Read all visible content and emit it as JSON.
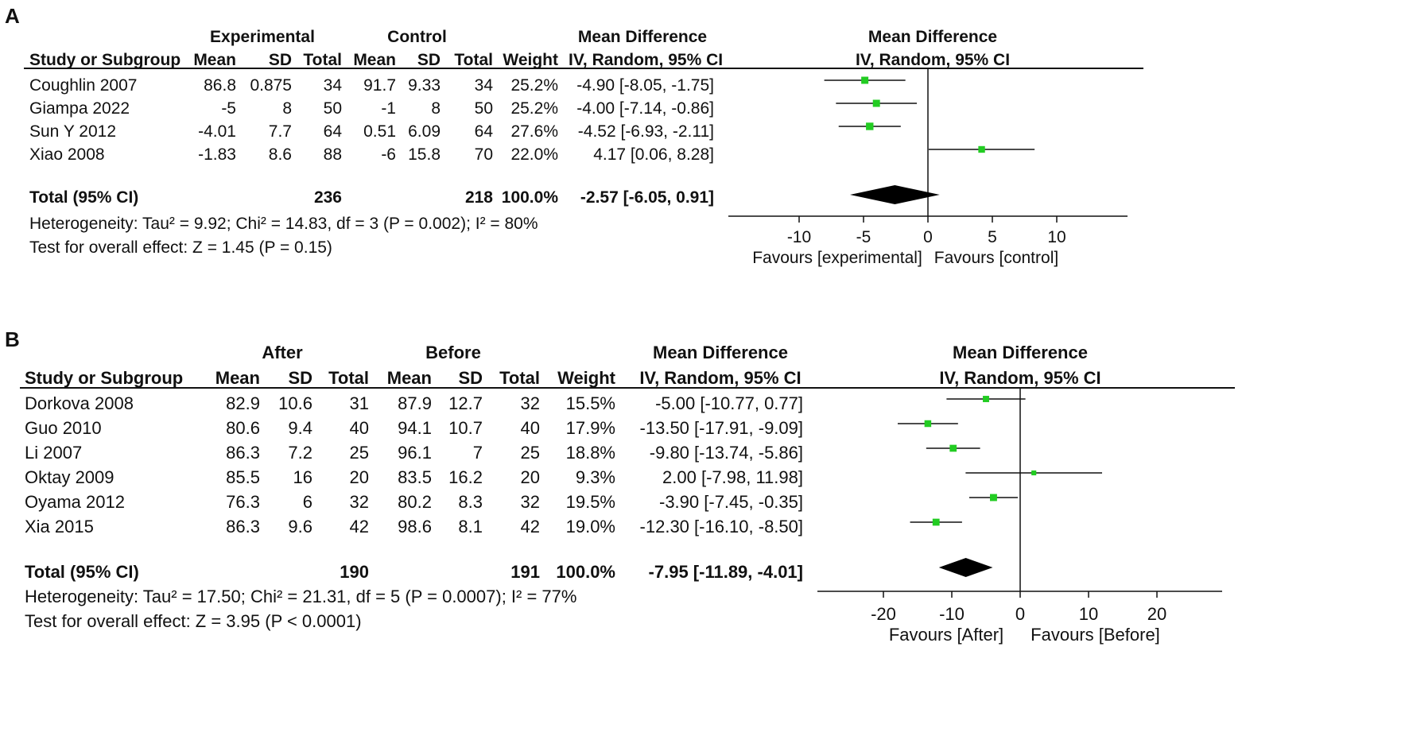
{
  "panels": [
    {
      "label": "A",
      "group1_label": "Experimental",
      "group2_label": "Control",
      "col_headers": {
        "study": "Study or Subgroup",
        "mean1": "Mean",
        "sd1": "SD",
        "total1": "Total",
        "mean2": "Mean",
        "sd2": "SD",
        "total2": "Total",
        "weight": "Weight",
        "md_title": "Mean Difference",
        "md_method": "IV, Random, 95% CI"
      },
      "plot_header": {
        "title": "Mean Difference",
        "method": "IV, Random, 95% CI"
      },
      "studies": [
        {
          "study": "Coughlin 2007",
          "mean1": "86.8",
          "sd1": "0.875",
          "total1": "34",
          "mean2": "91.7",
          "sd2": "9.33",
          "total2": "34",
          "weight": "25.2%",
          "ci_text": "-4.90 [-8.05, -1.75]"
        },
        {
          "study": "Giampa 2022",
          "mean1": "-5",
          "sd1": "8",
          "total1": "50",
          "mean2": "-1",
          "sd2": "8",
          "total2": "50",
          "weight": "25.2%",
          "ci_text": "-4.00 [-7.14, -0.86]"
        },
        {
          "study": "Sun Y 2012",
          "mean1": "-4.01",
          "sd1": "7.7",
          "total1": "64",
          "mean2": "0.51",
          "sd2": "6.09",
          "total2": "64",
          "weight": "27.6%",
          "ci_text": "-4.52 [-6.93, -2.11]"
        },
        {
          "study": "Xiao 2008",
          "mean1": "-1.83",
          "sd1": "8.6",
          "total1": "88",
          "mean2": "-6",
          "sd2": "15.8",
          "total2": "70",
          "weight": "22.0%",
          "ci_text": "4.17 [0.06, 8.28]"
        }
      ],
      "total": {
        "label": "Total (95% CI)",
        "total1": "236",
        "total2": "218",
        "weight": "100.0%",
        "ci_text": "-2.57 [-6.05, 0.91]"
      },
      "heterogeneity": "Heterogeneity: Tau² = 9.92; Chi² = 14.83, df = 3 (P = 0.002); I² = 80%",
      "overall_effect": "Test for overall effect: Z = 1.45 (P = 0.15)",
      "favours_left": "Favours [experimental]",
      "favours_right": "Favours [control]",
      "ticks": [
        "-10",
        "-5",
        "0",
        "5",
        "10"
      ]
    },
    {
      "label": "B",
      "group1_label": "After",
      "group2_label": "Before",
      "col_headers": {
        "study": "Study or Subgroup",
        "mean1": "Mean",
        "sd1": "SD",
        "total1": "Total",
        "mean2": "Mean",
        "sd2": "SD",
        "total2": "Total",
        "weight": "Weight",
        "md_title": "Mean Difference",
        "md_method": "IV, Random, 95% CI"
      },
      "plot_header": {
        "title": "Mean Difference",
        "method": "IV, Random, 95% CI"
      },
      "studies": [
        {
          "study": "Dorkova 2008",
          "mean1": "82.9",
          "sd1": "10.6",
          "total1": "31",
          "mean2": "87.9",
          "sd2": "12.7",
          "total2": "32",
          "weight": "15.5%",
          "ci_text": "-5.00 [-10.77, 0.77]"
        },
        {
          "study": "Guo 2010",
          "mean1": "80.6",
          "sd1": "9.4",
          "total1": "40",
          "mean2": "94.1",
          "sd2": "10.7",
          "total2": "40",
          "weight": "17.9%",
          "ci_text": "-13.50 [-17.91, -9.09]"
        },
        {
          "study": "Li 2007",
          "mean1": "86.3",
          "sd1": "7.2",
          "total1": "25",
          "mean2": "96.1",
          "sd2": "7",
          "total2": "25",
          "weight": "18.8%",
          "ci_text": "-9.80 [-13.74, -5.86]"
        },
        {
          "study": "Oktay 2009",
          "mean1": "85.5",
          "sd1": "16",
          "total1": "20",
          "mean2": "83.5",
          "sd2": "16.2",
          "total2": "20",
          "weight": "9.3%",
          "ci_text": "2.00 [-7.98, 11.98]"
        },
        {
          "study": "Oyama 2012",
          "mean1": "76.3",
          "sd1": "6",
          "total1": "32",
          "mean2": "80.2",
          "sd2": "8.3",
          "total2": "32",
          "weight": "19.5%",
          "ci_text": "-3.90 [-7.45, -0.35]"
        },
        {
          "study": "Xia 2015",
          "mean1": "86.3",
          "sd1": "9.6",
          "total1": "42",
          "mean2": "98.6",
          "sd2": "8.1",
          "total2": "42",
          "weight": "19.0%",
          "ci_text": "-12.30 [-16.10, -8.50]"
        }
      ],
      "total": {
        "label": "Total (95% CI)",
        "total1": "190",
        "total2": "191",
        "weight": "100.0%",
        "ci_text": "-7.95 [-11.89, -4.01]"
      },
      "heterogeneity": "Heterogeneity: Tau² = 17.50; Chi² = 21.31, df = 5 (P = 0.0007); I² = 77%",
      "overall_effect": "Test for overall effect: Z = 3.95 (P < 0.0001)",
      "favours_left": "Favours [After]",
      "favours_right": "Favours [Before]",
      "ticks": [
        "-20",
        "-10",
        "0",
        "10",
        "20"
      ]
    }
  ],
  "chart_data": [
    {
      "type": "forest",
      "title": "Mean Difference (IV, Random, 95% CI)",
      "xlim": [
        -15,
        15
      ],
      "xticks": [
        -10,
        -5,
        0,
        5,
        10
      ],
      "xlabel_left": "Favours [experimental]",
      "xlabel_right": "Favours [control]",
      "studies": [
        {
          "name": "Coughlin 2007",
          "md": -4.9,
          "lo": -8.05,
          "hi": -1.75,
          "weight": 25.2
        },
        {
          "name": "Giampa 2022",
          "md": -4.0,
          "lo": -7.14,
          "hi": -0.86,
          "weight": 25.2
        },
        {
          "name": "Sun Y 2012",
          "md": -4.52,
          "lo": -6.93,
          "hi": -2.11,
          "weight": 27.6
        },
        {
          "name": "Xiao 2008",
          "md": 4.17,
          "lo": 0.06,
          "hi": 8.28,
          "weight": 22.0
        }
      ],
      "pooled": {
        "md": -2.57,
        "lo": -6.05,
        "hi": 0.91
      },
      "marker_color": "#22cc22"
    },
    {
      "type": "forest",
      "title": "Mean Difference (IV, Random, 95% CI)",
      "xlim": [
        -30,
        30
      ],
      "xticks": [
        -20,
        -10,
        0,
        10,
        20
      ],
      "xlabel_left": "Favours [After]",
      "xlabel_right": "Favours [Before]",
      "studies": [
        {
          "name": "Dorkova 2008",
          "md": -5.0,
          "lo": -10.77,
          "hi": 0.77,
          "weight": 15.5
        },
        {
          "name": "Guo 2010",
          "md": -13.5,
          "lo": -17.91,
          "hi": -9.09,
          "weight": 17.9
        },
        {
          "name": "Li 2007",
          "md": -9.8,
          "lo": -13.74,
          "hi": -5.86,
          "weight": 18.8
        },
        {
          "name": "Oktay 2009",
          "md": 2.0,
          "lo": -7.98,
          "hi": 11.98,
          "weight": 9.3
        },
        {
          "name": "Oyama 2012",
          "md": -3.9,
          "lo": -7.45,
          "hi": -0.35,
          "weight": 19.5
        },
        {
          "name": "Xia 2015",
          "md": -12.3,
          "lo": -16.1,
          "hi": -8.5,
          "weight": 19.0
        }
      ],
      "pooled": {
        "md": -7.95,
        "lo": -11.89,
        "hi": -4.01
      },
      "marker_color": "#22cc22"
    }
  ]
}
